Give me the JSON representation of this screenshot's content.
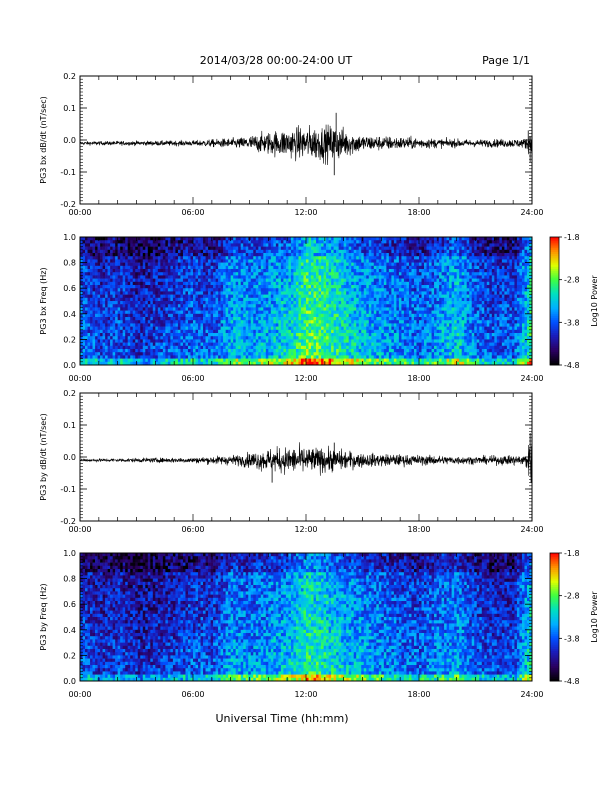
{
  "header": {
    "title": "2014/03/28  00:00-24:00 UT",
    "page": "Page 1/1"
  },
  "xlabel": "Universal Time (hh:mm)",
  "colors": {
    "trace": "#000000",
    "colormap": [
      "#000000",
      "#2a0060",
      "#1b1bb8",
      "#0050ff",
      "#00b0ff",
      "#00e0c0",
      "#40ff40",
      "#e0ff00",
      "#ff9000",
      "#ff0000"
    ]
  },
  "chart_data": [
    {
      "type": "line",
      "ylabel": "PG3 bx dB/dt (nT/sec)",
      "x_ticks": [
        "00:00",
        "06:00",
        "12:00",
        "18:00",
        "24:00"
      ],
      "x_range_hours": [
        0,
        24
      ],
      "ylim": [
        -0.2,
        0.2
      ],
      "y_ticks": [
        "0.2",
        "0.1",
        "0.0",
        "-0.1",
        "-0.2"
      ],
      "y_tick_values": [
        0.2,
        0.1,
        0.0,
        -0.1,
        -0.2
      ],
      "baseline": -0.01,
      "activity_envelope": [
        {
          "x": 0,
          "amp": 0.004
        },
        {
          "x": 6,
          "amp": 0.006
        },
        {
          "x": 8.5,
          "amp": 0.012
        },
        {
          "x": 10,
          "amp": 0.025
        },
        {
          "x": 11.5,
          "amp": 0.035
        },
        {
          "x": 13.5,
          "amp": 0.04
        },
        {
          "x": 15,
          "amp": 0.018
        },
        {
          "x": 19,
          "amp": 0.01
        },
        {
          "x": 21,
          "amp": 0.008
        },
        {
          "x": 23.6,
          "amp": 0.01
        },
        {
          "x": 24,
          "amp": 0.03
        }
      ],
      "spikes": [
        {
          "x": 13.6,
          "y": 0.085
        },
        {
          "x": 13.5,
          "y": -0.11
        },
        {
          "x": 23.9,
          "y": -0.07
        },
        {
          "x": 23.8,
          "y": 0.03
        }
      ]
    },
    {
      "type": "heatmap",
      "ylabel": "PG3 bx Freq (Hz)",
      "x_ticks": [
        "00:00",
        "06:00",
        "12:00",
        "18:00",
        "24:00"
      ],
      "x_range_hours": [
        0,
        24
      ],
      "ylim": [
        0.0,
        1.0
      ],
      "y_ticks": [
        "1.0",
        "0.8",
        "0.6",
        "0.4",
        "0.2",
        "0.0"
      ],
      "y_tick_values": [
        1.0,
        0.8,
        0.6,
        0.4,
        0.2,
        0.0
      ],
      "colorbar": {
        "label": "Log10 Power",
        "ticks": [
          "-1.8",
          "-2.8",
          "-3.8",
          "-4.8"
        ],
        "tick_values": [
          -1.8,
          -2.8,
          -3.8,
          -4.8
        ],
        "range": [
          -4.8,
          -1.8
        ]
      },
      "activity_by_hour": [
        0.35,
        0.25,
        0.3,
        0.2,
        0.25,
        0.3,
        0.35,
        0.3,
        0.5,
        0.45,
        0.5,
        0.55,
        0.75,
        0.7,
        0.6,
        0.5,
        0.45,
        0.4,
        0.35,
        0.45,
        0.55,
        0.35,
        0.3,
        0.3,
        0.7
      ]
    },
    {
      "type": "line",
      "ylabel": "PG3 by dB/dt (nT/sec)",
      "x_ticks": [
        "00:00",
        "06:00",
        "12:00",
        "18:00",
        "24:00"
      ],
      "x_range_hours": [
        0,
        24
      ],
      "ylim": [
        -0.2,
        0.2
      ],
      "y_ticks": [
        "0.2",
        "0.1",
        "0.0",
        "-0.1",
        "-0.2"
      ],
      "y_tick_values": [
        0.2,
        0.1,
        0.0,
        -0.1,
        -0.2
      ],
      "baseline": -0.01,
      "activity_envelope": [
        {
          "x": 0,
          "amp": 0.003
        },
        {
          "x": 6,
          "amp": 0.006
        },
        {
          "x": 8.5,
          "amp": 0.012
        },
        {
          "x": 10,
          "amp": 0.025
        },
        {
          "x": 11.5,
          "amp": 0.03
        },
        {
          "x": 13.5,
          "amp": 0.025
        },
        {
          "x": 15,
          "amp": 0.015
        },
        {
          "x": 19,
          "amp": 0.01
        },
        {
          "x": 21,
          "amp": 0.008
        },
        {
          "x": 23.6,
          "amp": 0.012
        },
        {
          "x": 24,
          "amp": 0.05
        }
      ],
      "spikes": [
        {
          "x": 10.2,
          "y": -0.08
        },
        {
          "x": 13.5,
          "y": 0.045
        },
        {
          "x": 23.9,
          "y": 0.075
        },
        {
          "x": 23.95,
          "y": -0.08
        }
      ]
    },
    {
      "type": "heatmap",
      "ylabel": "PG3 by Freq (Hz)",
      "x_ticks": [
        "00:00",
        "06:00",
        "12:00",
        "18:00",
        "24:00"
      ],
      "x_range_hours": [
        0,
        24
      ],
      "ylim": [
        0.0,
        1.0
      ],
      "y_ticks": [
        "1.0",
        "0.8",
        "0.6",
        "0.4",
        "0.2",
        "0.0"
      ],
      "y_tick_values": [
        1.0,
        0.8,
        0.6,
        0.4,
        0.2,
        0.0
      ],
      "colorbar": {
        "label": "Log10 Power",
        "ticks": [
          "-1.8",
          "-2.8",
          "-3.8",
          "-4.8"
        ],
        "tick_values": [
          -1.8,
          -2.8,
          -3.8,
          -4.8
        ],
        "range": [
          -4.8,
          -1.8
        ]
      },
      "activity_by_hour": [
        0.3,
        0.22,
        0.25,
        0.18,
        0.2,
        0.25,
        0.3,
        0.28,
        0.45,
        0.4,
        0.45,
        0.5,
        0.65,
        0.6,
        0.5,
        0.45,
        0.4,
        0.35,
        0.32,
        0.4,
        0.45,
        0.3,
        0.25,
        0.25,
        0.65
      ]
    }
  ]
}
